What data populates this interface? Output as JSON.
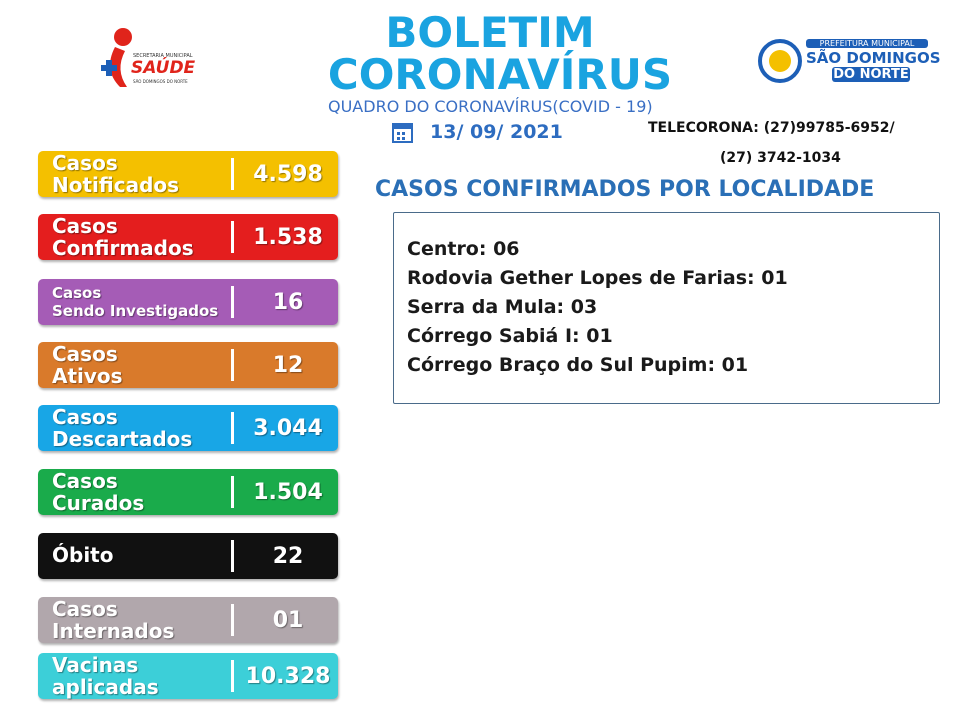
{
  "header": {
    "title_line1": "BOLETIM",
    "title_line2": "CORONAVÍRUS",
    "subtitle": "QUADRO DO CORONAVÍRUS(COVID - 19)",
    "date": "13/ 09/ 2021",
    "telecorona_line1": "TELECORONA: (27)99785-6952/",
    "telecorona_line2": "(27) 3742-1034",
    "left_logo": {
      "top": "SECRETARIA MUNICIPAL",
      "name": "SAÚDE",
      "bottom": "SÃO DOMINGOS DO NORTE"
    },
    "right_logo": {
      "top": "PREFEITURA MUNICIPAL",
      "line1": "SÃO DOMINGOS",
      "line2": "DO NORTE"
    }
  },
  "stats": [
    {
      "label": [
        "Casos",
        "Notificados"
      ],
      "value": "4.598",
      "color": "#f4c000"
    },
    {
      "label": [
        "Casos",
        "Confirmados"
      ],
      "value": "1.538",
      "color": "#e41e1e"
    },
    {
      "label": [
        "Casos",
        "Sendo Investigados"
      ],
      "value": "16",
      "color": "#a55cb6",
      "small": true
    },
    {
      "label": [
        "Casos",
        "Ativos"
      ],
      "value": "12",
      "color": "#d97a2b"
    },
    {
      "label": [
        "Casos",
        "Descartados"
      ],
      "value": "3.044",
      "color": "#18a6e6"
    },
    {
      "label": [
        "Casos",
        "Curados"
      ],
      "value": "1.504",
      "color": "#1aab4b"
    },
    {
      "label": [
        "Óbito"
      ],
      "value": "22",
      "color": "#111111"
    },
    {
      "label": [
        "Casos",
        "Internados"
      ],
      "value": "01",
      "color": "#b1a7ac"
    },
    {
      "label": [
        "Vacinas",
        "aplicadas"
      ],
      "value": "10.328",
      "color": "#3ccfd8"
    }
  ],
  "localities": {
    "title": "CASOS CONFIRMADOS POR LOCALIDADE",
    "items": [
      "Centro: 06",
      "Rodovia Gether Lopes de Farias: 01",
      "Serra da Mula: 03",
      "Córrego Sabiá I: 01",
      "Córrego Braço do Sul Pupim: 01"
    ]
  }
}
